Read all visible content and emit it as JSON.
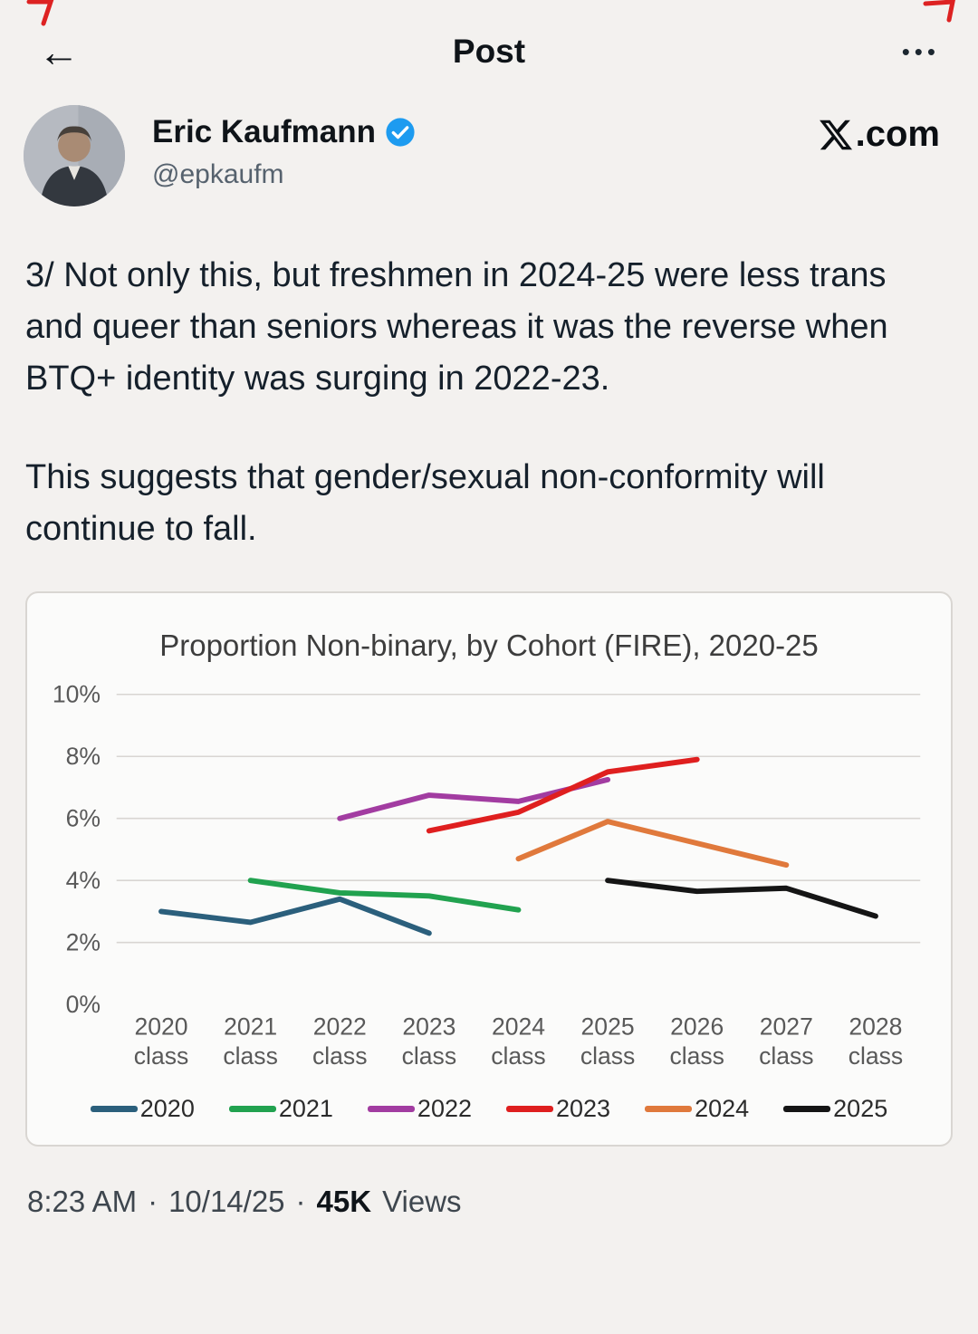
{
  "header": {
    "title": "Post",
    "back_icon": "←",
    "more_icon": "•••"
  },
  "profile": {
    "name": "Eric Kaufmann",
    "handle": "@epkaufm",
    "brand_suffix": ".com"
  },
  "tweet": {
    "paragraph1": "3/ Not only this, but freshmen in 2024-25 were less trans and queer than seniors whereas it was the reverse when BTQ+ identity was surging in 2022-23.",
    "paragraph2": "This suggests that gender/sexual non-conformity will continue to fall."
  },
  "chart_data": {
    "type": "line",
    "title": "Proportion Non-binary, by Cohort (FIRE), 2020-25",
    "categories": [
      "2020 class",
      "2021 class",
      "2022 class",
      "2023 class",
      "2024 class",
      "2025 class",
      "2026 class",
      "2027 class",
      "2028 class"
    ],
    "ylim": [
      0,
      10
    ],
    "yticks": [
      0,
      2,
      4,
      6,
      8,
      10
    ],
    "ytick_labels": [
      "0%",
      "2%",
      "4%",
      "6%",
      "8%",
      "10%"
    ],
    "grid": true,
    "legend_position": "bottom",
    "series": [
      {
        "name": "2020",
        "color": "#2b5f7c",
        "start_index": 0,
        "values": [
          3.0,
          2.65,
          3.4,
          2.3
        ]
      },
      {
        "name": "2021",
        "color": "#21a24f",
        "start_index": 1,
        "values": [
          4.0,
          3.6,
          3.5,
          3.05
        ]
      },
      {
        "name": "2022",
        "color": "#a23ca1",
        "start_index": 2,
        "values": [
          6.0,
          6.75,
          6.55,
          7.25
        ]
      },
      {
        "name": "2023",
        "color": "#df1f1f",
        "start_index": 3,
        "values": [
          5.6,
          6.2,
          7.5,
          7.9
        ]
      },
      {
        "name": "2024",
        "color": "#e0793c",
        "start_index": 4,
        "values": [
          4.7,
          5.9,
          5.2,
          4.5
        ]
      },
      {
        "name": "2025",
        "color": "#151515",
        "start_index": 5,
        "values": [
          4.0,
          3.65,
          3.75,
          2.85
        ]
      }
    ]
  },
  "footer": {
    "time": "8:23 AM",
    "date": "10/14/25",
    "separator": "·",
    "views_count": "45K",
    "views_label": "Views"
  }
}
